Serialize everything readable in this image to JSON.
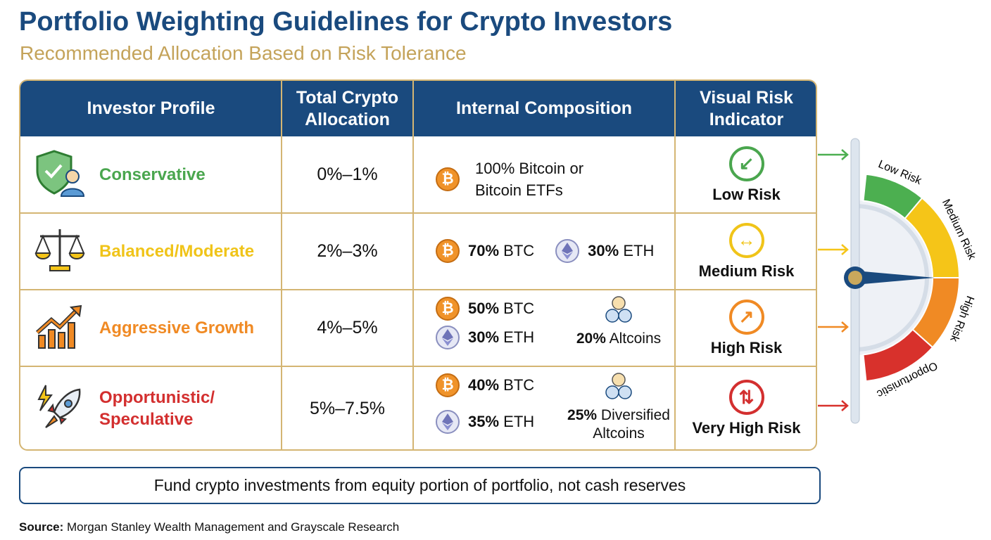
{
  "title": "Portfolio Weighting Guidelines for Crypto Investors",
  "subtitle": "Recommended Allocation Based on Risk Tolerance",
  "headers": [
    "Investor Profile",
    "Total Crypto\nAllocation",
    "Internal Composition",
    "Visual Risk\nIndicator"
  ],
  "rows": [
    {
      "profile": "Conservative",
      "color": "#4aa64e",
      "icon": "shield-user-icon",
      "allocation": "0%–1%",
      "composition": {
        "text": "100% Bitcoin or\nBitcoin ETFs"
      },
      "risk": "Low Risk",
      "risk_icon": "arrow-down-left-icon",
      "risk_glyph": "↙"
    },
    {
      "profile": "Balanced/Moderate",
      "color": "#f0c419",
      "icon": "scales-icon",
      "allocation": "2%–3%",
      "composition": {
        "btc_pct": "70%",
        "btc": "BTC",
        "eth_pct": "30%",
        "eth": "ETH"
      },
      "risk": "Medium Risk",
      "risk_icon": "arrow-left-right-icon",
      "risk_glyph": "↔"
    },
    {
      "profile": "Aggressive Growth",
      "color": "#f08a24",
      "icon": "growth-chart-icon",
      "allocation": "4%–5%",
      "composition": {
        "btc_pct": "50%",
        "btc": "BTC",
        "eth_pct": "30%",
        "eth": "ETH",
        "alt_pct": "20%",
        "alt": "Altcoins"
      },
      "risk": "High Risk",
      "risk_icon": "arrow-up-right-icon",
      "risk_glyph": "↗"
    },
    {
      "profile": "Opportunistic/\nSpeculative",
      "color": "#d32f2f",
      "icon": "rocket-icon",
      "allocation": "5%–7.5%",
      "composition": {
        "btc_pct": "40%",
        "btc": "BTC",
        "eth_pct": "35%",
        "eth": "ETH",
        "alt_pct": "25%",
        "alt": "Diversified\nAltcoins"
      },
      "risk": "Very High Risk",
      "risk_icon": "arrows-up-down-icon",
      "risk_glyph": "⇅"
    }
  ],
  "gauge": {
    "labels": [
      "Low Risk",
      "Medium Risk",
      "High Risk",
      "Opportunistic"
    ],
    "colors": [
      "#4caf50",
      "#f5c518",
      "#f08a24",
      "#d8312c"
    ],
    "needle_color": "#1a4a7e"
  },
  "note": "Fund crypto investments from equity portion of portfolio, not cash reserves",
  "source": {
    "label": "Source:",
    "text": " Morgan Stanley Wealth Management and Grayscale Research"
  }
}
